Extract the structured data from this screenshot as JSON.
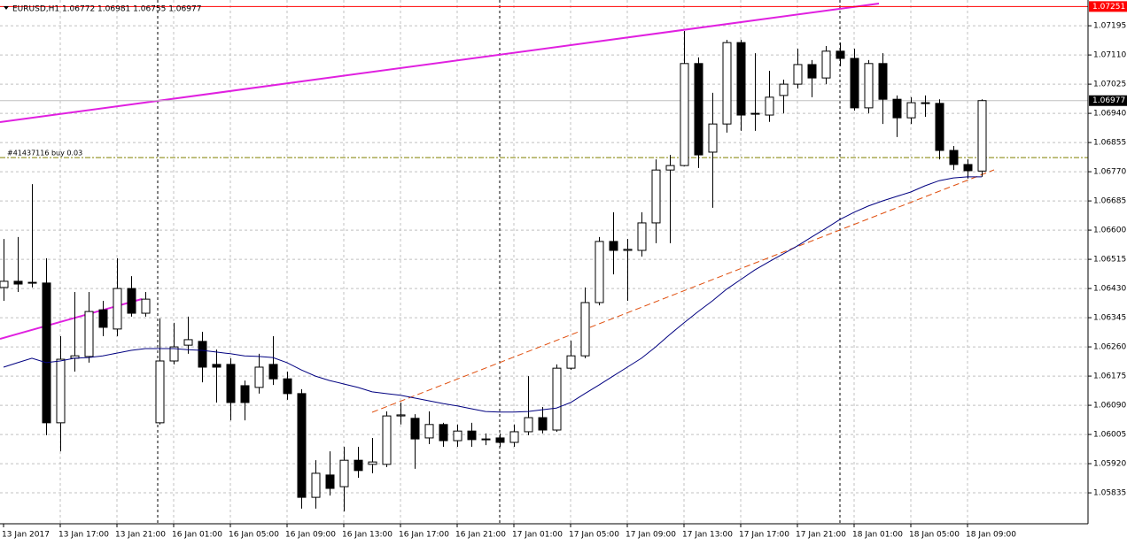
{
  "chart_data": {
    "type": "candlestick",
    "title": "EURUSD,H1  1.06772 1.06981 1.06755 1.06977",
    "categories": [
      "13 Jan 2017",
      null,
      null,
      null,
      "13 Jan 17:00",
      null,
      null,
      null,
      "13 Jan 21:00",
      null,
      null,
      null,
      "16 Jan 01:00",
      null,
      null,
      null,
      "16 Jan 05:00",
      null,
      null,
      null,
      "16 Jan 09:00",
      null,
      null,
      null,
      "16 Jan 13:00",
      null,
      null,
      null,
      "16 Jan 17:00",
      null,
      null,
      null,
      "16 Jan 21:00",
      null,
      null,
      null,
      "17 Jan 01:00",
      null,
      null,
      null,
      "17 Jan 05:00",
      null,
      null,
      null,
      "17 Jan 09:00",
      null,
      null,
      null,
      "17 Jan 13:00",
      null,
      null,
      null,
      "17 Jan 17:00",
      null,
      null,
      null,
      "17 Jan 21:00",
      null,
      null,
      null,
      "18 Jan 01:00",
      null,
      null,
      null,
      "18 Jan 05:00",
      null,
      null,
      null,
      "18 Jan 09:00",
      null
    ],
    "open": [
      1.06433,
      1.06451,
      1.06446,
      1.06446,
      1.06039,
      1.06227,
      1.06232,
      1.06368,
      1.06312,
      1.0643,
      1.06358,
      1.06039,
      1.06219,
      1.06265,
      1.06276,
      1.06209,
      1.06209,
      1.06147,
      1.06142,
      1.06209,
      1.06167,
      1.06124,
      1.05822,
      1.05887,
      1.05853,
      1.0593,
      1.05918,
      1.05918,
      1.06059,
      1.06052,
      1.05995,
      1.06034,
      1.05987,
      1.06015,
      1.0599,
      1.05995,
      1.05982,
      1.06013,
      1.06054,
      1.06018,
      1.06198,
      1.06234,
      1.06389,
      1.06567,
      1.06541,
      1.06541,
      1.06621,
      1.06775,
      1.06788,
      1.07085,
      1.06827,
      1.06909,
      1.07146,
      1.0694,
      1.06935,
      1.06992,
      1.07025,
      1.07082,
      1.07043,
      1.07121,
      1.071,
      1.06956,
      1.07085,
      1.06981,
      1.06927,
      1.06971,
      1.06969,
      1.06832,
      1.06791,
      1.06772
    ],
    "high": [
      1.06574,
      1.0658,
      1.06734,
      1.06518,
      1.06291,
      1.0642,
      1.0642,
      1.06394,
      1.06518,
      1.06466,
      1.0642,
      1.06343,
      1.0633,
      1.06348,
      1.06304,
      1.06252,
      1.06227,
      1.06162,
      1.0624,
      1.06291,
      1.06188,
      1.06137,
      1.0593,
      1.05956,
      1.05969,
      1.05969,
      1.05995,
      1.06072,
      1.06098,
      1.06064,
      1.06072,
      1.06039,
      1.06034,
      1.06039,
      1.06008,
      1.06008,
      1.06034,
      1.06175,
      1.06085,
      1.06209,
      1.06278,
      1.06433,
      1.0658,
      1.06652,
      1.06574,
      1.06652,
      1.06806,
      1.06819,
      1.0718,
      1.07103,
      1.07,
      1.07154,
      1.07154,
      1.07115,
      1.07064,
      1.07038,
      1.07128,
      1.07095,
      1.07136,
      1.07146,
      1.07128,
      1.07095,
      1.07115,
      1.06992,
      1.06987,
      1.06992,
      1.06981,
      1.06845,
      1.06806,
      1.06981
    ],
    "low": [
      1.06394,
      1.0642,
      1.06433,
      1.06003,
      1.05956,
      1.06188,
      1.06214,
      1.06291,
      1.06291,
      1.06348,
      1.06348,
      1.06034,
      1.06209,
      1.0624,
      1.06157,
      1.06098,
      1.06046,
      1.06046,
      1.06124,
      1.06149,
      1.06106,
      1.05789,
      1.05789,
      1.05827,
      1.05781,
      1.05879,
      1.05892,
      1.0591,
      1.06034,
      1.05905,
      1.05977,
      1.05969,
      1.05969,
      1.05969,
      1.05974,
      1.05969,
      1.05969,
      1.06003,
      1.06008,
      1.06013,
      1.06193,
      1.06227,
      1.06381,
      1.06471,
      1.06394,
      1.06523,
      1.06562,
      1.06562,
      1.06786,
      1.06781,
      1.06665,
      1.06884,
      1.06889,
      1.06889,
      1.06915,
      1.0694,
      1.07012,
      1.06987,
      1.07025,
      1.07077,
      1.06948,
      1.0694,
      1.06909,
      1.06871,
      1.06909,
      1.0693,
      1.06806,
      1.06775,
      1.0675,
      1.06755
    ],
    "close": [
      1.06451,
      1.06443,
      1.06448,
      1.06039,
      1.06224,
      1.06234,
      1.06363,
      1.06317,
      1.0643,
      1.06358,
      1.06399,
      1.06219,
      1.0626,
      1.06281,
      1.06201,
      1.06201,
      1.06098,
      1.06098,
      1.06201,
      1.06167,
      1.06124,
      1.05822,
      1.05892,
      1.05848,
      1.0593,
      1.059,
      1.05925,
      1.06059,
      1.06062,
      1.05992,
      1.06034,
      1.05987,
      1.06015,
      1.0599,
      1.05992,
      1.05982,
      1.06013,
      1.06054,
      1.06018,
      1.06198,
      1.06234,
      1.06389,
      1.06567,
      1.06541,
      1.06544,
      1.06621,
      1.06775,
      1.06788,
      1.07085,
      1.06819,
      1.06909,
      1.07146,
      1.06935,
      1.06938,
      1.06987,
      1.07025,
      1.07082,
      1.07043,
      1.07121,
      1.071,
      1.06956,
      1.07085,
      1.06981,
      1.06927,
      1.06971,
      1.06969,
      1.06832,
      1.06791,
      1.06773,
      1.06977
    ],
    "moving_average": {
      "color": "#000080",
      "values": [
        1.06201,
        1.06214,
        1.06227,
        1.06214,
        1.06219,
        1.06227,
        1.06229,
        1.06234,
        1.06242,
        1.0625,
        1.06255,
        1.06255,
        1.06255,
        1.06252,
        1.0625,
        1.06245,
        1.0624,
        1.06234,
        1.06232,
        1.06229,
        1.06214,
        1.06193,
        1.06175,
        1.06162,
        1.06152,
        1.06142,
        1.06129,
        1.06124,
        1.06119,
        1.06111,
        1.06103,
        1.06095,
        1.06088,
        1.0608,
        1.06072,
        1.0607,
        1.0607,
        1.06072,
        1.06077,
        1.06082,
        1.06098,
        1.06124,
        1.06149,
        1.06175,
        1.06201,
        1.06227,
        1.0626,
        1.06296,
        1.0633,
        1.06363,
        1.06394,
        1.06428,
        1.06456,
        1.06484,
        1.06508,
        1.06531,
        1.06554,
        1.0658,
        1.06605,
        1.06631,
        1.06652,
        1.0667,
        1.06685,
        1.06698,
        1.06711,
        1.06729,
        1.06744,
        1.06752,
        1.06755,
        1.06755
      ]
    },
    "ylim": [
      1.05745,
      1.0727
    ],
    "yticks": [
      {
        "value": 1.05835,
        "label": "1.05835"
      },
      {
        "value": 1.0592,
        "label": "1.05920"
      },
      {
        "value": 1.06005,
        "label": "1.06005"
      },
      {
        "value": 1.0609,
        "label": "1.06090"
      },
      {
        "value": 1.06175,
        "label": "1.06175"
      },
      {
        "value": 1.0626,
        "label": "1.06260"
      },
      {
        "value": 1.06345,
        "label": "1.06345"
      },
      {
        "value": 1.0643,
        "label": "1.06430"
      },
      {
        "value": 1.06515,
        "label": "1.06515"
      },
      {
        "value": 1.066,
        "label": "1.06600"
      },
      {
        "value": 1.06685,
        "label": "1.06685"
      },
      {
        "value": 1.0677,
        "label": "1.06770"
      },
      {
        "value": 1.06855,
        "label": "1.06855"
      },
      {
        "value": 1.0694,
        "label": "1.06940"
      },
      {
        "value": 1.07025,
        "label": "1.07025"
      },
      {
        "value": 1.0711,
        "label": "1.07110"
      },
      {
        "value": 1.07195,
        "label": "1.07195"
      }
    ],
    "grid": true,
    "current_price": 1.06977,
    "alert_line": {
      "value": 1.07251,
      "color": "#ff0000"
    },
    "order": {
      "label": "#41437116 buy 0.03",
      "price": 1.06811,
      "color": "#808000"
    },
    "bull_color": "#ffffff",
    "bear_color": "#000000"
  }
}
